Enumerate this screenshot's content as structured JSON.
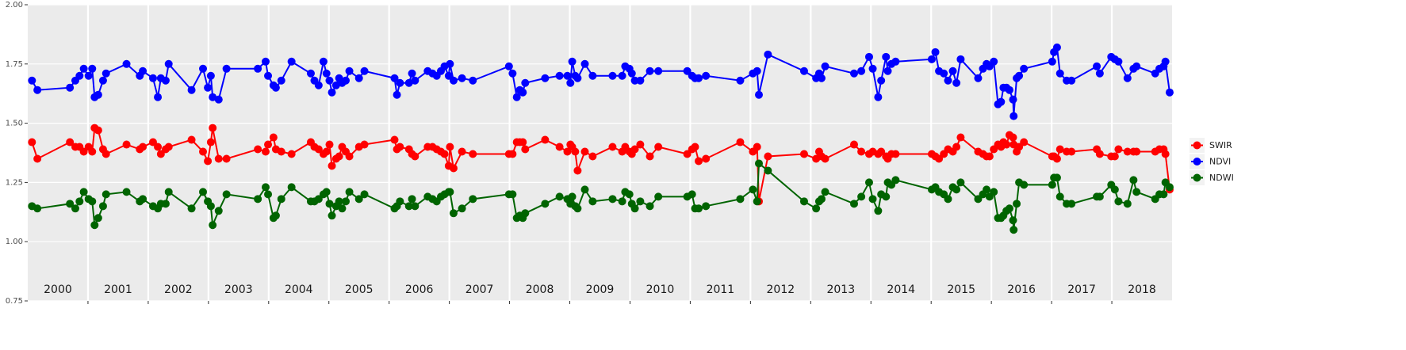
{
  "chart_data": {
    "type": "line",
    "facet_labels": [
      "2000",
      "2001",
      "2002",
      "2003",
      "2004",
      "2005",
      "2006",
      "2007",
      "2008",
      "2009",
      "2010",
      "2011",
      "2012",
      "2013",
      "2014",
      "2015",
      "2016",
      "2017",
      "2018"
    ],
    "x": [
      2000.07,
      2000.16,
      2000.7,
      2000.79,
      2000.86,
      2000.93,
      2001.01,
      2001.07,
      2001.11,
      2001.17,
      2001.25,
      2001.3,
      2001.64,
      2001.86,
      2001.91,
      2002.08,
      2002.16,
      2002.21,
      2002.29,
      2002.34,
      2002.72,
      2002.91,
      2002.99,
      2003.04,
      2003.07,
      2003.17,
      2003.3,
      2003.82,
      2003.95,
      2003.99,
      2004.08,
      2004.12,
      2004.21,
      2004.38,
      2004.7,
      2004.76,
      2004.83,
      2004.91,
      2004.96,
      2005.01,
      2005.05,
      2005.12,
      2005.17,
      2005.22,
      2005.28,
      2005.34,
      2005.5,
      2005.59,
      2006.09,
      2006.13,
      2006.18,
      2006.33,
      2006.38,
      2006.43,
      2006.64,
      2006.72,
      2006.79,
      2006.86,
      2006.92,
      2006.99,
      2007.01,
      2007.07,
      2007.21,
      2007.39,
      2007.99,
      2008.05,
      2008.12,
      2008.17,
      2008.22,
      2008.26,
      2008.59,
      2008.83,
      2008.96,
      2009.01,
      2009.04,
      2009.09,
      2009.13,
      2009.25,
      2009.38,
      2009.71,
      2009.87,
      2009.92,
      2009.99,
      2010.03,
      2010.08,
      2010.17,
      2010.33,
      2010.47,
      2010.95,
      2011.03,
      2011.08,
      2011.14,
      2011.26,
      2011.83,
      2012.04,
      2012.11,
      2012.14,
      2012.29,
      2012.89,
      2013.09,
      2013.14,
      2013.18,
      2013.24,
      2013.72,
      2013.84,
      2013.97,
      2014.03,
      2014.12,
      2014.17,
      2014.25,
      2014.28,
      2014.34,
      2014.41,
      2015.01,
      2015.07,
      2015.13,
      2015.21,
      2015.28,
      2015.36,
      2015.42,
      2015.49,
      2015.78,
      2015.86,
      2015.92,
      2015.97,
      2016.04,
      2016.11,
      2016.16,
      2016.2,
      2016.25,
      2016.3,
      2016.36,
      2016.37,
      2016.42,
      2016.46,
      2016.54,
      2017.01,
      2017.04,
      2017.09,
      2017.14,
      2017.25,
      2017.33,
      2017.75,
      2017.8,
      2017.99,
      2018.05,
      2018.11,
      2018.26,
      2018.36,
      2018.41,
      2018.72,
      2018.79,
      2018.86,
      2018.89,
      2018.96
    ],
    "series": [
      {
        "name": "SWIR",
        "color": "#ff0000",
        "values": [
          1.42,
          1.35,
          1.42,
          1.4,
          1.4,
          1.38,
          1.4,
          1.38,
          1.48,
          1.47,
          1.39,
          1.37,
          1.41,
          1.39,
          1.4,
          1.42,
          1.4,
          1.37,
          1.39,
          1.4,
          1.43,
          1.38,
          1.34,
          1.42,
          1.48,
          1.35,
          1.35,
          1.39,
          1.38,
          1.41,
          1.44,
          1.39,
          1.38,
          1.37,
          1.42,
          1.4,
          1.39,
          1.37,
          1.38,
          1.41,
          1.32,
          1.35,
          1.36,
          1.4,
          1.38,
          1.36,
          1.4,
          1.41,
          1.43,
          1.39,
          1.4,
          1.39,
          1.37,
          1.36,
          1.4,
          1.4,
          1.39,
          1.38,
          1.37,
          1.32,
          1.4,
          1.31,
          1.38,
          1.37,
          1.37,
          1.37,
          1.42,
          1.42,
          1.42,
          1.39,
          1.43,
          1.4,
          1.38,
          1.41,
          1.4,
          1.38,
          1.3,
          1.38,
          1.36,
          1.4,
          1.38,
          1.4,
          1.38,
          1.37,
          1.39,
          1.41,
          1.36,
          1.4,
          1.37,
          1.39,
          1.4,
          1.34,
          1.35,
          1.42,
          1.38,
          1.4,
          1.17,
          1.36,
          1.37,
          1.35,
          1.38,
          1.36,
          1.35,
          1.41,
          1.38,
          1.37,
          1.38,
          1.37,
          1.38,
          1.36,
          1.35,
          1.37,
          1.37,
          1.37,
          1.36,
          1.35,
          1.37,
          1.39,
          1.38,
          1.4,
          1.44,
          1.38,
          1.37,
          1.36,
          1.36,
          1.39,
          1.41,
          1.4,
          1.42,
          1.41,
          1.45,
          1.44,
          1.41,
          1.38,
          1.4,
          1.42,
          1.36,
          1.36,
          1.35,
          1.39,
          1.38,
          1.38,
          1.39,
          1.37,
          1.36,
          1.36,
          1.39,
          1.38,
          1.38,
          1.38,
          1.38,
          1.39,
          1.39,
          1.37,
          1.22
        ]
      },
      {
        "name": "NDVI",
        "color": "#0000ff",
        "values": [
          1.68,
          1.64,
          1.65,
          1.68,
          1.7,
          1.73,
          1.7,
          1.73,
          1.61,
          1.62,
          1.68,
          1.71,
          1.75,
          1.7,
          1.72,
          1.69,
          1.61,
          1.69,
          1.68,
          1.75,
          1.64,
          1.73,
          1.65,
          1.7,
          1.61,
          1.6,
          1.73,
          1.73,
          1.76,
          1.7,
          1.66,
          1.65,
          1.68,
          1.76,
          1.71,
          1.68,
          1.66,
          1.76,
          1.71,
          1.68,
          1.63,
          1.66,
          1.69,
          1.67,
          1.68,
          1.72,
          1.69,
          1.72,
          1.69,
          1.62,
          1.67,
          1.67,
          1.71,
          1.68,
          1.72,
          1.71,
          1.7,
          1.72,
          1.74,
          1.7,
          1.75,
          1.68,
          1.69,
          1.68,
          1.74,
          1.71,
          1.61,
          1.64,
          1.63,
          1.67,
          1.69,
          1.7,
          1.7,
          1.67,
          1.76,
          1.7,
          1.69,
          1.75,
          1.7,
          1.7,
          1.7,
          1.74,
          1.73,
          1.71,
          1.68,
          1.68,
          1.72,
          1.72,
          1.72,
          1.7,
          1.69,
          1.69,
          1.7,
          1.68,
          1.71,
          1.72,
          1.62,
          1.79,
          1.72,
          1.69,
          1.71,
          1.69,
          1.74,
          1.71,
          1.72,
          1.78,
          1.73,
          1.61,
          1.68,
          1.78,
          1.72,
          1.75,
          1.76,
          1.77,
          1.8,
          1.72,
          1.71,
          1.68,
          1.72,
          1.67,
          1.77,
          1.69,
          1.73,
          1.75,
          1.74,
          1.76,
          1.58,
          1.59,
          1.65,
          1.65,
          1.64,
          1.6,
          1.53,
          1.69,
          1.7,
          1.73,
          1.76,
          1.8,
          1.82,
          1.71,
          1.68,
          1.68,
          1.74,
          1.71,
          1.78,
          1.77,
          1.76,
          1.69,
          1.73,
          1.74,
          1.71,
          1.73,
          1.74,
          1.76,
          1.63
        ]
      },
      {
        "name": "NDWI",
        "color": "#006400",
        "values": [
          1.15,
          1.14,
          1.16,
          1.14,
          1.17,
          1.21,
          1.18,
          1.17,
          1.07,
          1.1,
          1.15,
          1.2,
          1.21,
          1.17,
          1.18,
          1.15,
          1.14,
          1.16,
          1.16,
          1.21,
          1.14,
          1.21,
          1.17,
          1.15,
          1.07,
          1.13,
          1.2,
          1.18,
          1.23,
          1.2,
          1.1,
          1.11,
          1.18,
          1.23,
          1.17,
          1.17,
          1.18,
          1.2,
          1.21,
          1.16,
          1.11,
          1.15,
          1.17,
          1.14,
          1.17,
          1.21,
          1.18,
          1.2,
          1.14,
          1.15,
          1.17,
          1.15,
          1.18,
          1.15,
          1.19,
          1.18,
          1.17,
          1.19,
          1.2,
          1.21,
          1.21,
          1.12,
          1.14,
          1.18,
          1.2,
          1.2,
          1.1,
          1.11,
          1.1,
          1.12,
          1.16,
          1.19,
          1.18,
          1.16,
          1.19,
          1.15,
          1.14,
          1.22,
          1.17,
          1.18,
          1.17,
          1.21,
          1.2,
          1.16,
          1.14,
          1.17,
          1.15,
          1.19,
          1.19,
          1.2,
          1.14,
          1.14,
          1.15,
          1.18,
          1.22,
          1.17,
          1.33,
          1.3,
          1.17,
          1.14,
          1.17,
          1.18,
          1.21,
          1.16,
          1.19,
          1.25,
          1.18,
          1.13,
          1.2,
          1.19,
          1.25,
          1.24,
          1.26,
          1.22,
          1.23,
          1.21,
          1.2,
          1.18,
          1.23,
          1.22,
          1.25,
          1.18,
          1.2,
          1.22,
          1.19,
          1.21,
          1.1,
          1.1,
          1.11,
          1.13,
          1.14,
          1.09,
          1.05,
          1.16,
          1.25,
          1.24,
          1.24,
          1.27,
          1.27,
          1.19,
          1.16,
          1.16,
          1.19,
          1.19,
          1.24,
          1.22,
          1.17,
          1.16,
          1.26,
          1.21,
          1.18,
          1.2,
          1.2,
          1.25,
          1.23
        ]
      }
    ],
    "xlim": [
      2000,
      2019
    ],
    "xticks": [
      2001,
      2002,
      2003,
      2004,
      2005,
      2006,
      2007,
      2008,
      2009,
      2010,
      2011,
      2012,
      2013,
      2014,
      2015,
      2016,
      2017,
      2018
    ],
    "ylim": [
      0.75,
      2.0
    ],
    "yticks": [
      {
        "value": 0.75,
        "label": "0.75"
      },
      {
        "value": 1.0,
        "label": "1.00"
      },
      {
        "value": 1.25,
        "label": "1.25"
      },
      {
        "value": 1.5,
        "label": "1.50"
      },
      {
        "value": 1.75,
        "label": "1.75"
      },
      {
        "value": 2.0,
        "label": "2.00"
      }
    ],
    "grid": true,
    "legend": "right"
  }
}
